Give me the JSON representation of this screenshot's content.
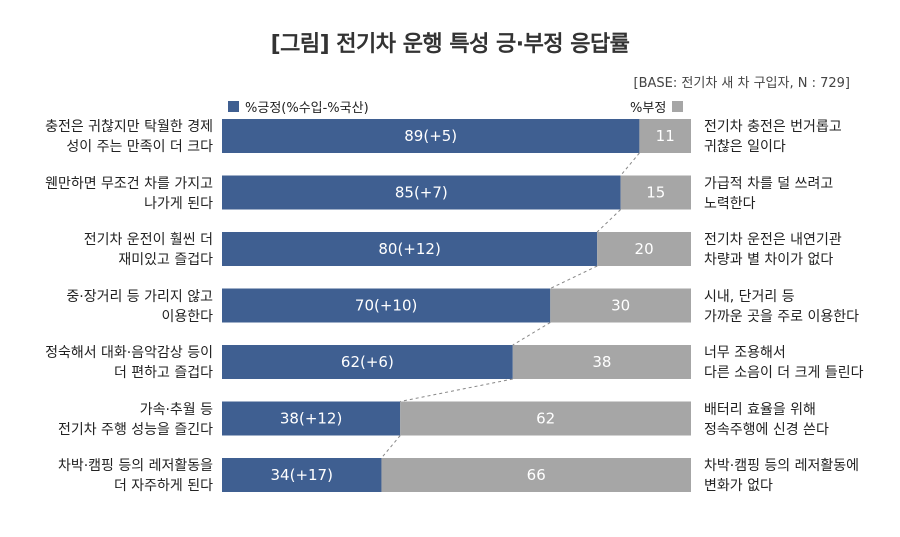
{
  "title": "[그림] 전기차 운행 특성 긍·부정 응답률",
  "base_note": "[BASE: 전기차 새 차 구입자, N : 729]",
  "colors": {
    "positive": "#3f5f91",
    "negative": "#a6a6a6"
  },
  "chart_data": {
    "type": "bar",
    "orientation": "horizontal-stacked",
    "xlim": [
      0,
      100
    ],
    "series": [
      {
        "name": "%긍정(%수입-%국산)",
        "values": [
          89,
          85,
          80,
          70,
          62,
          38,
          34
        ],
        "labels": [
          "89(+5)",
          "85(+7)",
          "80(+12)",
          "70(+10)",
          "62(+6)",
          "38(+12)",
          "34(+17)"
        ]
      },
      {
        "name": "%부정",
        "values": [
          11,
          15,
          20,
          30,
          38,
          62,
          66
        ],
        "labels": [
          "11",
          "15",
          "20",
          "30",
          "38",
          "62",
          "66"
        ]
      }
    ],
    "left_statements": [
      [
        "충전은 귀찮지만 탁월한 경제",
        "성이 주는 만족이 더 크다"
      ],
      [
        "웬만하면 무조건 차를 가지고",
        "나가게 된다"
      ],
      [
        "전기차 운전이 훨씬 더",
        "재미있고 즐겁다"
      ],
      [
        "중·장거리 등 가리지 않고",
        "이용한다"
      ],
      [
        "정숙해서 대화·음악감상 등이",
        "더 편하고 즐겁다"
      ],
      [
        "가속·추월 등",
        "전기차 주행 성능을 즐긴다"
      ],
      [
        "차박·캠핑 등의 레저활동을",
        "더 자주하게 된다"
      ]
    ],
    "right_statements": [
      [
        "전기차 충전은 번거롭고",
        "귀찮은 일이다"
      ],
      [
        "가급적 차를 덜 쓰려고",
        "노력한다"
      ],
      [
        "전기차 운전은 내연기관",
        "차량과 별 차이가 없다"
      ],
      [
        "시내, 단거리 등",
        "가까운 곳을 주로 이용한다"
      ],
      [
        "너무 조용해서",
        "다른 소음이 더 크게 들린다"
      ],
      [
        "배터리 효율을 위해",
        "정속주행에 신경 쓴다"
      ],
      [
        "차박·캠핑 등의 레저활동에",
        "변화가 없다"
      ]
    ]
  }
}
